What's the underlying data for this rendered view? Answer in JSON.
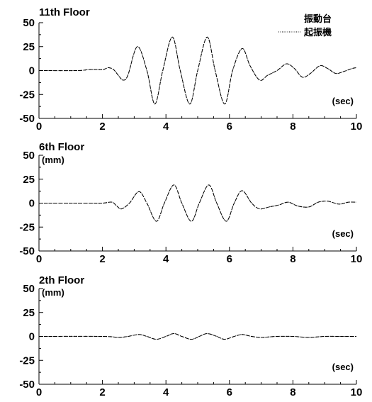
{
  "legend": {
    "entries": [
      "振動台",
      "起振機"
    ]
  },
  "chart_data": [
    {
      "type": "line",
      "title": "11th Floor",
      "ylabel": "",
      "xlabel": "(sec)",
      "xlim": [
        0,
        10
      ],
      "ylim": [
        -50,
        50
      ],
      "xticks": [
        0,
        2,
        4,
        6,
        8,
        10
      ],
      "yticks": [
        50,
        25,
        0,
        -25,
        -50
      ],
      "series": [
        {
          "name": "振動台",
          "x": [
            0,
            1.2,
            1.6,
            2.0,
            2.1,
            2.2,
            2.35,
            2.5,
            2.65,
            2.8,
            3.1,
            3.4,
            3.65,
            3.9,
            4.2,
            4.45,
            4.75,
            5.0,
            5.3,
            5.55,
            5.85,
            6.1,
            6.4,
            6.65,
            6.95,
            7.2,
            7.5,
            7.8,
            8.05,
            8.3,
            8.55,
            8.85,
            9.1,
            9.35,
            9.6,
            9.85,
            10
          ],
          "y": [
            0,
            0,
            1,
            1,
            2,
            3,
            1,
            -5,
            -10,
            -5,
            25,
            0,
            -35,
            0,
            35,
            0,
            -35,
            0,
            35,
            0,
            -35,
            0,
            23,
            5,
            -10,
            -5,
            0,
            7,
            2,
            -7,
            -3,
            5,
            2,
            -3,
            -1,
            2,
            3
          ]
        },
        {
          "name": "起振機",
          "x": [
            0,
            1.2,
            1.6,
            2.0,
            2.1,
            2.2,
            2.35,
            2.5,
            2.65,
            2.8,
            3.1,
            3.4,
            3.65,
            3.9,
            4.2,
            4.45,
            4.75,
            5.0,
            5.3,
            5.55,
            5.85,
            6.1,
            6.4,
            6.65,
            6.95,
            7.2,
            7.5,
            7.8,
            8.05,
            8.3,
            8.55,
            8.85,
            9.1,
            9.35,
            9.6,
            9.85,
            10
          ],
          "y": [
            0,
            0,
            1,
            1,
            2,
            3,
            1,
            -5,
            -10,
            -5,
            25,
            0,
            -35,
            0,
            35,
            0,
            -35,
            0,
            35,
            0,
            -35,
            0,
            23,
            5,
            -10,
            -5,
            0,
            7,
            2,
            -7,
            -3,
            5,
            2,
            -3,
            -1,
            2,
            3
          ]
        }
      ]
    },
    {
      "type": "line",
      "title": "6th Floor",
      "ylabel": "(mm)",
      "xlabel": "(sec)",
      "xlim": [
        0,
        10
      ],
      "ylim": [
        -50,
        50
      ],
      "xticks": [
        0,
        2,
        4,
        6,
        8,
        10
      ],
      "yticks": [
        50,
        25,
        0,
        -25,
        -50
      ],
      "series": [
        {
          "name": "振動台",
          "x": [
            0,
            1.5,
            2.0,
            2.3,
            2.45,
            2.6,
            2.85,
            3.15,
            3.4,
            3.7,
            3.95,
            4.25,
            4.5,
            4.8,
            5.05,
            5.35,
            5.6,
            5.9,
            6.15,
            6.4,
            6.7,
            6.95,
            7.25,
            7.55,
            7.85,
            8.15,
            8.5,
            8.8,
            9.1,
            9.45,
            9.75,
            10
          ],
          "y": [
            0,
            0,
            0,
            1,
            -3,
            -6,
            0,
            12,
            0,
            -19,
            0,
            19,
            0,
            -19,
            0,
            19,
            0,
            -19,
            0,
            13,
            0,
            -6,
            -4,
            -2,
            1,
            -3,
            -4,
            1,
            2,
            -1,
            1,
            1
          ]
        },
        {
          "name": "起振機",
          "x": [
            0,
            1.5,
            2.0,
            2.3,
            2.45,
            2.6,
            2.85,
            3.15,
            3.4,
            3.7,
            3.95,
            4.25,
            4.5,
            4.8,
            5.05,
            5.35,
            5.6,
            5.9,
            6.15,
            6.4,
            6.7,
            6.95,
            7.25,
            7.55,
            7.85,
            8.15,
            8.5,
            8.8,
            9.1,
            9.45,
            9.75,
            10
          ],
          "y": [
            0,
            0,
            0,
            1,
            -3,
            -6,
            0,
            12,
            0,
            -19,
            0,
            19,
            0,
            -19,
            0,
            19,
            0,
            -19,
            0,
            13,
            0,
            -6,
            -4,
            -2,
            1,
            -3,
            -4,
            1,
            2,
            -1,
            1,
            1
          ]
        }
      ]
    },
    {
      "type": "line",
      "title": "2th Floor",
      "ylabel": "(mm)",
      "xlabel": "(sec)",
      "xlim": [
        0,
        10
      ],
      "ylim": [
        -50,
        50
      ],
      "xticks": [
        0,
        2,
        4,
        6,
        8,
        10
      ],
      "yticks": [
        50,
        25,
        0,
        -25,
        -50
      ],
      "series": [
        {
          "name": "振動台",
          "x": [
            0,
            2.0,
            2.5,
            2.8,
            3.15,
            3.4,
            3.7,
            4.0,
            4.25,
            4.5,
            4.8,
            5.05,
            5.3,
            5.6,
            5.85,
            6.15,
            6.4,
            6.7,
            7.0,
            7.5,
            8.0,
            8.5,
            9.0,
            9.5,
            10
          ],
          "y": [
            0,
            0,
            -1,
            0,
            2,
            0,
            -3,
            0,
            3,
            0,
            -3,
            0,
            3,
            0,
            -3,
            0,
            2,
            0,
            -1,
            0,
            0,
            -1,
            0,
            0,
            0
          ]
        },
        {
          "name": "起振機",
          "x": [
            0,
            2.0,
            2.5,
            2.8,
            3.15,
            3.4,
            3.7,
            4.0,
            4.25,
            4.5,
            4.8,
            5.05,
            5.3,
            5.6,
            5.85,
            6.15,
            6.4,
            6.7,
            7.0,
            7.5,
            8.0,
            8.5,
            9.0,
            9.5,
            10
          ],
          "y": [
            0,
            0,
            -1,
            0,
            2,
            0,
            -3,
            0,
            3,
            0,
            -3,
            0,
            3,
            0,
            -3,
            0,
            2,
            0,
            -1,
            0,
            0,
            -1,
            0,
            0,
            0
          ]
        }
      ]
    }
  ]
}
